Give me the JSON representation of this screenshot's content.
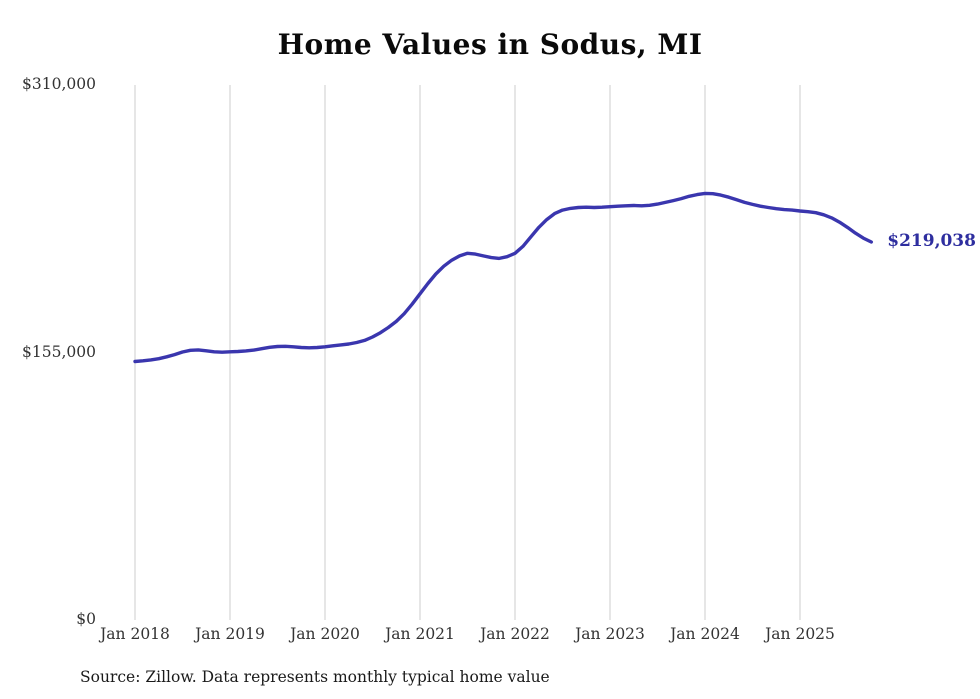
{
  "chart_data": {
    "type": "line",
    "title": "Home Values in Sodus, MI",
    "source": "Source: Zillow. Data represents monthly typical home value",
    "end_label": "$219,038",
    "end_value": 219038,
    "xlabel": "",
    "ylabel": "",
    "ylim": [
      0,
      310000
    ],
    "line_color": "#3a36ae",
    "label_color": "#2e2e9f",
    "grid_color": "#cccccc",
    "legend": "none",
    "grid": "vertical-only",
    "yticks": [
      {
        "value": 0,
        "label": "$0"
      },
      {
        "value": 155000,
        "label": "$155,000"
      },
      {
        "value": 310000,
        "label": "$310,000"
      }
    ],
    "xticks": [
      {
        "month_index": 0,
        "label": "Jan 2018"
      },
      {
        "month_index": 12,
        "label": "Jan 2019"
      },
      {
        "month_index": 24,
        "label": "Jan 2020"
      },
      {
        "month_index": 36,
        "label": "Jan 2021"
      },
      {
        "month_index": 48,
        "label": "Jan 2022"
      },
      {
        "month_index": 60,
        "label": "Jan 2023"
      },
      {
        "month_index": 72,
        "label": "Jan 2024"
      },
      {
        "month_index": 84,
        "label": "Jan 2025"
      }
    ],
    "x_interval": "monthly",
    "months": [
      "2018-01",
      "2018-02",
      "2018-03",
      "2018-04",
      "2018-05",
      "2018-06",
      "2018-07",
      "2018-08",
      "2018-09",
      "2018-10",
      "2018-11",
      "2018-12",
      "2019-01",
      "2019-02",
      "2019-03",
      "2019-04",
      "2019-05",
      "2019-06",
      "2019-07",
      "2019-08",
      "2019-09",
      "2019-10",
      "2019-11",
      "2019-12",
      "2020-01",
      "2020-02",
      "2020-03",
      "2020-04",
      "2020-05",
      "2020-06",
      "2020-07",
      "2020-08",
      "2020-09",
      "2020-10",
      "2020-11",
      "2020-12",
      "2021-01",
      "2021-02",
      "2021-03",
      "2021-04",
      "2021-05",
      "2021-06",
      "2021-07",
      "2021-08",
      "2021-09",
      "2021-10",
      "2021-11",
      "2021-12",
      "2022-01",
      "2022-02",
      "2022-03",
      "2022-04",
      "2022-05",
      "2022-06",
      "2022-07",
      "2022-08",
      "2022-09",
      "2022-10",
      "2022-11",
      "2022-12",
      "2023-01",
      "2023-02",
      "2023-03",
      "2023-04",
      "2023-05",
      "2023-06",
      "2023-07",
      "2023-08",
      "2023-09",
      "2023-10",
      "2023-11",
      "2023-12",
      "2024-01",
      "2024-02",
      "2024-03",
      "2024-04",
      "2024-05",
      "2024-06",
      "2024-07",
      "2024-08",
      "2024-09",
      "2024-10",
      "2024-11",
      "2024-12",
      "2025-01",
      "2025-02",
      "2025-03",
      "2025-04",
      "2025-05",
      "2025-06",
      "2025-07",
      "2025-08",
      "2025-09",
      "2025-10"
    ],
    "values": [
      149800,
      150200,
      150700,
      151400,
      152500,
      153800,
      155300,
      156300,
      156500,
      156000,
      155400,
      155200,
      155400,
      155600,
      155900,
      156400,
      157200,
      158000,
      158500,
      158600,
      158300,
      157900,
      157700,
      157900,
      158300,
      158900,
      159400,
      159900,
      160800,
      162000,
      164000,
      166500,
      169500,
      173000,
      177500,
      183000,
      189000,
      195000,
      200500,
      205000,
      208500,
      211000,
      212500,
      212000,
      211000,
      210000,
      209500,
      210500,
      212500,
      216500,
      222000,
      227500,
      232000,
      235500,
      237500,
      238500,
      239000,
      239200,
      239000,
      239200,
      239500,
      239800,
      240000,
      240200,
      240000,
      240300,
      241000,
      242000,
      243000,
      244200,
      245500,
      246500,
      247200,
      247000,
      246200,
      245000,
      243500,
      242000,
      240800,
      239800,
      239000,
      238300,
      237800,
      237500,
      237000,
      236600,
      236000,
      234800,
      233000,
      230500,
      227500,
      224200,
      221300,
      219038
    ]
  }
}
